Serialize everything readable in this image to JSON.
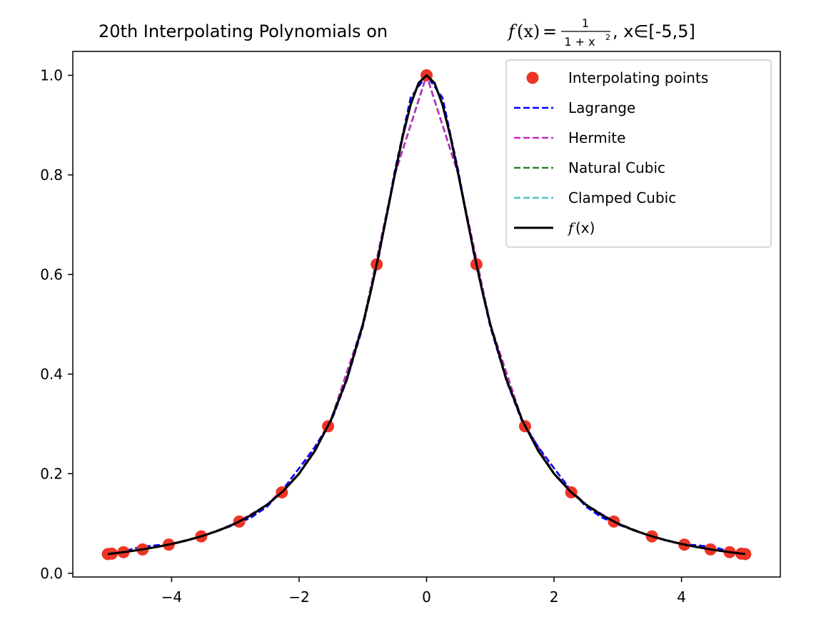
{
  "chart_data": {
    "type": "line",
    "title": {
      "prefix": "20th Interpolating Polynomials on ",
      "func_name": "f",
      "func_arg": "(x)",
      "equals": "=",
      "frac_num": "1",
      "frac_den": "1 + x",
      "frac_den_exp": "2",
      "suffix": ", x∈[-5,5]"
    },
    "xlabel": "",
    "ylabel": "",
    "xlim": [
      -5.55,
      5.55
    ],
    "ylim": [
      -0.0075,
      1.048
    ],
    "xticks": [
      -4,
      -2,
      0,
      2,
      4
    ],
    "xtick_labels": [
      "−4",
      "−2",
      "0",
      "2",
      "4"
    ],
    "yticks": [
      0.0,
      0.2,
      0.4,
      0.6,
      0.8,
      1.0
    ],
    "ytick_labels": [
      "0.0",
      "0.2",
      "0.4",
      "0.6",
      "0.8",
      "1.0"
    ],
    "grid": false,
    "legend_position": "top-right",
    "series": [
      {
        "name": "Interpolating points",
        "style": "markers",
        "color": "#ee3425",
        "x": [
          -5.0,
          -4.9384,
          -4.7553,
          -4.455,
          -4.0451,
          -3.5355,
          -2.9389,
          -2.27,
          -1.5451,
          -0.7822,
          0.0,
          0.7822,
          1.5451,
          2.27,
          2.9389,
          3.5355,
          4.0451,
          4.455,
          4.7553,
          4.9384,
          5.0
        ],
        "y": [
          0.0385,
          0.0394,
          0.0424,
          0.0479,
          0.0576,
          0.0741,
          0.1038,
          0.1625,
          0.2952,
          0.6204,
          1.0,
          0.6204,
          0.2952,
          0.1625,
          0.1038,
          0.0741,
          0.0576,
          0.0479,
          0.0424,
          0.0394,
          0.0385
        ]
      },
      {
        "name": "Lagrange",
        "style": "dashed",
        "color": "#0000ff",
        "x": [
          -5.0,
          -4.75,
          -4.5,
          -4.25,
          -4.0,
          -3.75,
          -3.5,
          -3.25,
          -3.0,
          -2.75,
          -2.5,
          -2.25,
          -2.0,
          -1.75,
          -1.5,
          -1.25,
          -1.0,
          -0.75,
          -0.5,
          -0.25,
          0.0,
          0.25,
          0.5,
          0.75,
          1.0,
          1.25,
          1.5,
          1.75,
          2.0,
          2.25,
          2.5,
          2.75,
          3.0,
          3.25,
          3.5,
          3.75,
          4.0,
          4.25,
          4.5,
          4.75,
          5.0
        ],
        "y": [
          0.0385,
          0.0445,
          0.0525,
          0.0562,
          0.0585,
          0.066,
          0.0755,
          0.0866,
          0.098,
          0.112,
          0.134,
          0.169,
          0.211,
          0.254,
          0.304,
          0.388,
          0.495,
          0.635,
          0.807,
          0.955,
          1.0,
          0.955,
          0.807,
          0.635,
          0.495,
          0.388,
          0.304,
          0.254,
          0.211,
          0.169,
          0.134,
          0.112,
          0.098,
          0.0866,
          0.0755,
          0.066,
          0.0585,
          0.0562,
          0.0525,
          0.0445,
          0.0385
        ]
      },
      {
        "name": "Hermite",
        "style": "dashed",
        "color": "#bf2fbf",
        "x": [
          -5.0,
          -4.5,
          -4.0,
          -3.5,
          -3.0,
          -2.5,
          -2.0,
          -1.5,
          -1.0,
          -0.5,
          0.0,
          0.5,
          1.0,
          1.5,
          2.0,
          2.5,
          3.0,
          3.5,
          4.0,
          4.5,
          5.0
        ],
        "y": [
          0.0385,
          0.0471,
          0.0588,
          0.0755,
          0.1,
          0.1379,
          0.2,
          0.3077,
          0.5,
          0.8,
          1.0,
          0.8,
          0.5,
          0.3077,
          0.2,
          0.1379,
          0.1,
          0.0755,
          0.0588,
          0.0471,
          0.0385
        ]
      },
      {
        "name": "Natural Cubic",
        "style": "dashed",
        "color": "#2a7f2a",
        "x": [
          -5.0,
          -4.5,
          -4.0,
          -3.5,
          -3.0,
          -2.5,
          -2.0,
          -1.5,
          -1.0,
          -0.5,
          0.0,
          0.5,
          1.0,
          1.5,
          2.0,
          2.5,
          3.0,
          3.5,
          4.0,
          4.5,
          5.0
        ],
        "y": [
          0.0385,
          0.0471,
          0.0588,
          0.0755,
          0.1,
          0.1379,
          0.2,
          0.3077,
          0.5,
          0.8,
          1.0,
          0.8,
          0.5,
          0.3077,
          0.2,
          0.1379,
          0.1,
          0.0755,
          0.0588,
          0.0471,
          0.0385
        ]
      },
      {
        "name": "Clamped Cubic",
        "style": "dashed",
        "color": "#4fbfbf",
        "x": [
          -5.0,
          -4.5,
          -4.0,
          -3.5,
          -3.0,
          -2.5,
          -2.0,
          -1.5,
          -1.0,
          -0.5,
          0.0,
          0.5,
          1.0,
          1.5,
          2.0,
          2.5,
          3.0,
          3.5,
          4.0,
          4.5,
          5.0
        ],
        "y": [
          0.0385,
          0.0471,
          0.0588,
          0.0755,
          0.1,
          0.1379,
          0.2,
          0.3077,
          0.5,
          0.8,
          1.0,
          0.8,
          0.5,
          0.3077,
          0.2,
          0.1379,
          0.1,
          0.0755,
          0.0588,
          0.0471,
          0.0385
        ]
      },
      {
        "name": "f(x)",
        "legend_func": "f",
        "legend_arg": "(x)",
        "style": "solid",
        "color": "#000000",
        "x": [
          -5.0,
          -4.75,
          -4.5,
          -4.25,
          -4.0,
          -3.75,
          -3.5,
          -3.25,
          -3.0,
          -2.75,
          -2.5,
          -2.25,
          -2.0,
          -1.75,
          -1.5,
          -1.25,
          -1.0,
          -0.875,
          -0.75,
          -0.625,
          -0.5,
          -0.375,
          -0.25,
          -0.125,
          0.0,
          0.125,
          0.25,
          0.375,
          0.5,
          0.625,
          0.75,
          0.875,
          1.0,
          1.25,
          1.5,
          1.75,
          2.0,
          2.25,
          2.5,
          2.75,
          3.0,
          3.25,
          3.5,
          3.75,
          4.0,
          4.25,
          4.5,
          4.75,
          5.0
        ],
        "y": [
          0.0385,
          0.0425,
          0.0471,
          0.0525,
          0.0588,
          0.0664,
          0.0755,
          0.0865,
          0.1,
          0.1168,
          0.1379,
          0.1649,
          0.2,
          0.2462,
          0.3077,
          0.3902,
          0.5,
          0.5664,
          0.64,
          0.7191,
          0.8,
          0.8767,
          0.9412,
          0.9846,
          1.0,
          0.9846,
          0.9412,
          0.8767,
          0.8,
          0.7191,
          0.64,
          0.5664,
          0.5,
          0.3902,
          0.3077,
          0.2462,
          0.2,
          0.1649,
          0.1379,
          0.1168,
          0.1,
          0.0865,
          0.0755,
          0.0664,
          0.0588,
          0.0525,
          0.0471,
          0.0425,
          0.0385
        ]
      }
    ]
  }
}
